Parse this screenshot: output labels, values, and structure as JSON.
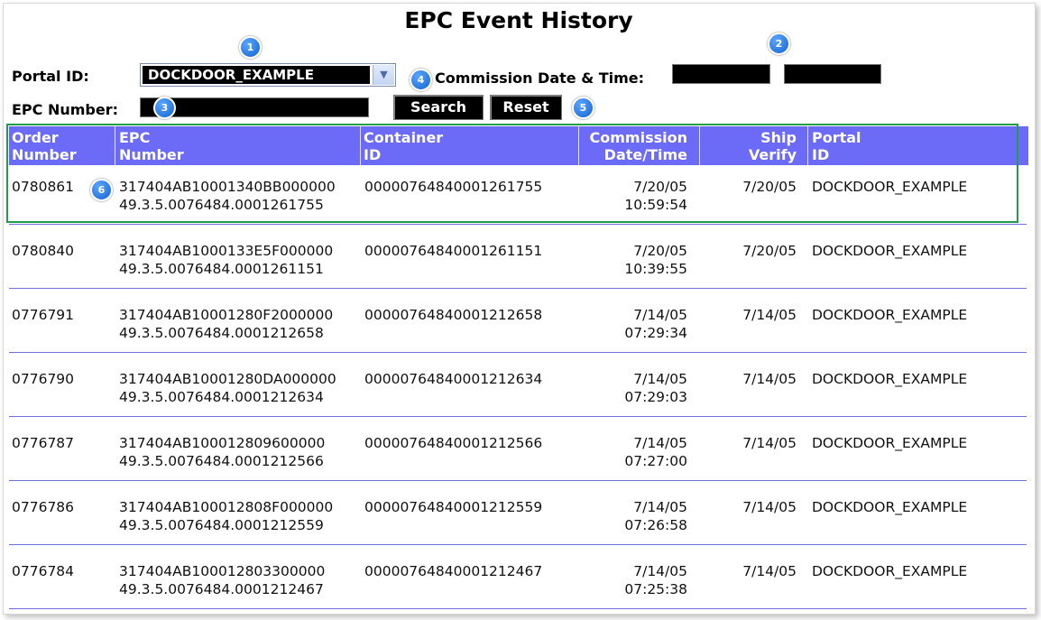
{
  "page": {
    "title": "EPC Event History"
  },
  "form": {
    "portal_label": "Portal ID:",
    "portal_value": "DOCKDOOR_EXAMPLE",
    "commission_label": "Commission Date & Time:",
    "epc_label": "EPC Number:",
    "search_label": "Search",
    "reset_label": "Reset"
  },
  "badges": [
    "1",
    "2",
    "3",
    "4",
    "5",
    "6"
  ],
  "table": {
    "headers": {
      "order": [
        "Order",
        "Number"
      ],
      "epc": [
        "EPC",
        "Number"
      ],
      "container": [
        "Container",
        "ID"
      ],
      "commission": [
        "Commission",
        "Date/Time"
      ],
      "ship": [
        "Ship",
        "Verify"
      ],
      "portal": [
        "Portal",
        "ID"
      ]
    },
    "rows": [
      {
        "order": "0780861",
        "epc1": "317404AB10001340BB000000",
        "epc2": "49.3.5.0076484.0001261755",
        "container": "00000764840001261755",
        "date": "7/20/05",
        "time": "10:59:54",
        "ship": "7/20/05",
        "portal": "DOCKDOOR_EXAMPLE"
      },
      {
        "order": "0780840",
        "epc1": "317404AB1000133E5F000000",
        "epc2": "49.3.5.0076484.0001261151",
        "container": "00000764840001261151",
        "date": "7/20/05",
        "time": "10:39:55",
        "ship": "7/20/05",
        "portal": "DOCKDOOR_EXAMPLE"
      },
      {
        "order": "0776791",
        "epc1": "317404AB10001280F2000000",
        "epc2": "49.3.5.0076484.0001212658",
        "container": "00000764840001212658",
        "date": "7/14/05",
        "time": "07:29:34",
        "ship": "7/14/05",
        "portal": "DOCKDOOR_EXAMPLE"
      },
      {
        "order": "0776790",
        "epc1": "317404AB10001280DA000000",
        "epc2": "49.3.5.0076484.0001212634",
        "container": "00000764840001212634",
        "date": "7/14/05",
        "time": "07:29:03",
        "ship": "7/14/05",
        "portal": "DOCKDOOR_EXAMPLE"
      },
      {
        "order": "0776787",
        "epc1": "317404AB100012809600000",
        "epc2": "49.3.5.0076484.0001212566",
        "container": "00000764840001212566",
        "date": "7/14/05",
        "time": "07:27:00",
        "ship": "7/14/05",
        "portal": "DOCKDOOR_EXAMPLE"
      },
      {
        "order": "0776786",
        "epc1": "317404AB100012808F000000",
        "epc2": "49.3.5.0076484.0001212559",
        "container": "00000764840001212559",
        "date": "7/14/05",
        "time": "07:26:58",
        "ship": "7/14/05",
        "portal": "DOCKDOOR_EXAMPLE"
      },
      {
        "order": "0776784",
        "epc1": "317404AB100012803300000",
        "epc2": "49.3.5.0076484.0001212467",
        "container": "00000764840001212467",
        "date": "7/14/05",
        "time": "07:25:38",
        "ship": "7/14/05",
        "portal": "DOCKDOOR_EXAMPLE"
      }
    ]
  }
}
